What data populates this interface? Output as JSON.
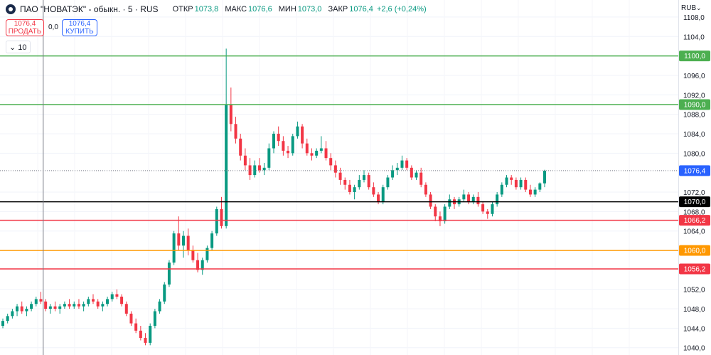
{
  "header": {
    "symbol": "ПАО \"НОВАТЭК\" - обыкн. · 5 · RUS",
    "ohlc": [
      {
        "k": "ОТКР",
        "v": "1073,8"
      },
      {
        "k": "МАКС",
        "v": "1076,6"
      },
      {
        "k": "МИН",
        "v": "1073,0"
      },
      {
        "k": "ЗАКР",
        "v": "1076,4"
      },
      {
        "k": "",
        "v": "+2,6 (+0,24%)"
      }
    ],
    "sell_price": "1076,4",
    "sell_label": "ПРОДАТЬ",
    "spread": "0,0",
    "buy_price": "1076,4",
    "buy_label": "КУПИТЬ",
    "interval_control": "⌄ 10",
    "currency": "RUB",
    "currency_chevron": "⌄"
  },
  "colors": {
    "up": "#089981",
    "down": "#f23645",
    "line_green": "#4caf50",
    "line_red": "#f23645",
    "line_orange": "#ff9800",
    "line_black": "#000000",
    "price_line_blue": "#2962ff"
  },
  "chart_data": {
    "type": "candlestick",
    "ylim": [
      1038.5,
      1111.5
    ],
    "y_ticks": [
      {
        "v": 1040,
        "label": "1040,0"
      },
      {
        "v": 1044,
        "label": "1044,0"
      },
      {
        "v": 1048,
        "label": "1048,0"
      },
      {
        "v": 1052,
        "label": "1052,0"
      },
      {
        "v": 1064,
        "label": "1064,0"
      },
      {
        "v": 1068,
        "label": "1068,0"
      },
      {
        "v": 1072,
        "label": "1072,0"
      },
      {
        "v": 1080,
        "label": "1080,0"
      },
      {
        "v": 1084,
        "label": "1084,0"
      },
      {
        "v": 1088,
        "label": "1088,0"
      },
      {
        "v": 1092,
        "label": "1092,0"
      },
      {
        "v": 1096,
        "label": "1096,0"
      },
      {
        "v": 1104,
        "label": "1104,0"
      },
      {
        "v": 1108,
        "label": "1108,0"
      }
    ],
    "horizontal_lines": [
      {
        "price": 1100.0,
        "label": "1100,0",
        "color": "#4caf50",
        "style": "solid"
      },
      {
        "price": 1090.0,
        "label": "1090,0",
        "color": "#4caf50",
        "style": "solid"
      },
      {
        "price": 1076.4,
        "label": "1076,4",
        "color": "#2962ff",
        "style": "dotted"
      },
      {
        "price": 1070.0,
        "label": "1070,0",
        "color": "#000000",
        "style": "solid"
      },
      {
        "price": 1066.2,
        "label": "1066,2",
        "color": "#f23645",
        "style": "solid"
      },
      {
        "price": 1060.0,
        "label": "1060,0",
        "color": "#ff9800",
        "style": "solid"
      },
      {
        "price": 1056.2,
        "label": "1056,2",
        "color": "#f23645",
        "style": "solid"
      }
    ],
    "candles": [
      [
        1044.5,
        1046.0,
        1044.0,
        1045.5
      ],
      [
        1045.5,
        1047.0,
        1045.0,
        1046.5
      ],
      [
        1046.5,
        1048.0,
        1046.0,
        1047.5
      ],
      [
        1047.5,
        1049.0,
        1046.5,
        1048.5
      ],
      [
        1048.5,
        1049.5,
        1047.0,
        1047.5
      ],
      [
        1047.5,
        1048.5,
        1046.5,
        1048.0
      ],
      [
        1048.0,
        1049.5,
        1047.5,
        1049.0
      ],
      [
        1049.0,
        1050.5,
        1048.5,
        1050.0
      ],
      [
        1050.0,
        1051.5,
        1049.0,
        1049.5
      ],
      [
        1049.5,
        1050.0,
        1047.5,
        1048.0
      ],
      [
        1048.0,
        1049.0,
        1047.0,
        1048.5
      ],
      [
        1048.5,
        1049.5,
        1047.5,
        1048.0
      ],
      [
        1048.0,
        1049.0,
        1047.0,
        1048.5
      ],
      [
        1048.5,
        1049.5,
        1048.0,
        1049.0
      ],
      [
        1049.0,
        1050.0,
        1048.0,
        1048.5
      ],
      [
        1048.5,
        1049.5,
        1048.0,
        1049.0
      ],
      [
        1049.0,
        1050.0,
        1048.0,
        1048.5
      ],
      [
        1048.5,
        1049.5,
        1047.5,
        1049.0
      ],
      [
        1049.0,
        1050.5,
        1048.5,
        1050.0
      ],
      [
        1050.0,
        1051.0,
        1049.0,
        1049.5
      ],
      [
        1049.5,
        1050.0,
        1048.0,
        1048.5
      ],
      [
        1048.5,
        1049.5,
        1047.5,
        1049.0
      ],
      [
        1049.0,
        1050.5,
        1048.5,
        1050.0
      ],
      [
        1050.0,
        1051.5,
        1049.5,
        1051.0
      ],
      [
        1051.0,
        1052.0,
        1050.0,
        1050.5
      ],
      [
        1050.5,
        1051.0,
        1048.5,
        1049.0
      ],
      [
        1049.0,
        1049.5,
        1046.5,
        1047.0
      ],
      [
        1047.0,
        1047.5,
        1044.5,
        1045.0
      ],
      [
        1045.0,
        1046.0,
        1043.0,
        1043.5
      ],
      [
        1043.5,
        1044.5,
        1041.5,
        1042.0
      ],
      [
        1042.0,
        1043.0,
        1040.5,
        1041.0
      ],
      [
        1041.0,
        1045.0,
        1040.5,
        1044.5
      ],
      [
        1044.5,
        1048.0,
        1044.0,
        1047.5
      ],
      [
        1047.5,
        1050.0,
        1047.0,
        1049.5
      ],
      [
        1049.5,
        1053.5,
        1049.0,
        1053.0
      ],
      [
        1053.0,
        1058.0,
        1052.5,
        1057.5
      ],
      [
        1057.5,
        1064.0,
        1057.0,
        1063.5
      ],
      [
        1063.5,
        1067.0,
        1060.0,
        1061.0
      ],
      [
        1061.0,
        1064.0,
        1058.5,
        1063.0
      ],
      [
        1063.0,
        1064.5,
        1059.0,
        1060.0
      ],
      [
        1060.0,
        1061.0,
        1057.5,
        1058.0
      ],
      [
        1058.0,
        1059.5,
        1055.5,
        1056.0
      ],
      [
        1056.0,
        1058.5,
        1055.0,
        1058.0
      ],
      [
        1058.0,
        1061.0,
        1057.5,
        1060.5
      ],
      [
        1060.5,
        1064.0,
        1060.0,
        1063.5
      ],
      [
        1063.5,
        1069.0,
        1063.0,
        1068.5
      ],
      [
        1068.5,
        1071.0,
        1064.5,
        1065.0
      ],
      [
        1065.0,
        1101.5,
        1064.5,
        1090.0
      ],
      [
        1090.0,
        1093.5,
        1084.5,
        1086.0
      ],
      [
        1086.0,
        1087.5,
        1082.0,
        1083.0
      ],
      [
        1083.0,
        1084.0,
        1078.5,
        1079.5
      ],
      [
        1079.5,
        1081.0,
        1076.5,
        1077.5
      ],
      [
        1077.5,
        1079.0,
        1074.5,
        1075.5
      ],
      [
        1075.5,
        1078.5,
        1075.0,
        1077.5
      ],
      [
        1077.5,
        1079.0,
        1076.0,
        1076.5
      ],
      [
        1076.5,
        1078.0,
        1075.5,
        1077.0
      ],
      [
        1077.0,
        1082.0,
        1076.5,
        1081.0
      ],
      [
        1081.0,
        1084.5,
        1080.0,
        1084.0
      ],
      [
        1084.0,
        1085.5,
        1081.5,
        1082.5
      ],
      [
        1082.5,
        1083.5,
        1079.5,
        1080.5
      ],
      [
        1080.5,
        1081.5,
        1079.0,
        1080.0
      ],
      [
        1080.0,
        1084.0,
        1079.5,
        1083.5
      ],
      [
        1083.5,
        1086.5,
        1083.0,
        1085.5
      ],
      [
        1085.5,
        1086.0,
        1081.0,
        1082.0
      ],
      [
        1082.0,
        1083.0,
        1079.5,
        1080.0
      ],
      [
        1080.0,
        1081.0,
        1078.5,
        1079.5
      ],
      [
        1079.5,
        1081.0,
        1079.0,
        1080.5
      ],
      [
        1080.5,
        1083.5,
        1080.0,
        1081.0
      ],
      [
        1081.0,
        1082.5,
        1078.5,
        1079.0
      ],
      [
        1079.0,
        1080.0,
        1076.5,
        1077.5
      ],
      [
        1077.5,
        1078.5,
        1075.0,
        1076.0
      ],
      [
        1076.0,
        1077.0,
        1073.5,
        1074.5
      ],
      [
        1074.5,
        1075.0,
        1072.5,
        1073.5
      ],
      [
        1073.5,
        1074.5,
        1071.5,
        1072.0
      ],
      [
        1072.0,
        1073.5,
        1070.5,
        1073.0
      ],
      [
        1073.0,
        1075.5,
        1072.5,
        1074.5
      ],
      [
        1074.5,
        1076.5,
        1074.0,
        1075.5
      ],
      [
        1075.5,
        1076.0,
        1072.5,
        1073.0
      ],
      [
        1073.0,
        1074.0,
        1071.0,
        1071.5
      ],
      [
        1071.5,
        1072.0,
        1069.5,
        1070.0
      ],
      [
        1070.0,
        1073.5,
        1069.5,
        1073.0
      ],
      [
        1073.0,
        1075.5,
        1072.5,
        1075.0
      ],
      [
        1075.0,
        1077.5,
        1074.5,
        1076.5
      ],
      [
        1076.5,
        1078.0,
        1075.5,
        1077.0
      ],
      [
        1077.0,
        1079.5,
        1076.5,
        1078.5
      ],
      [
        1078.5,
        1079.0,
        1076.5,
        1077.0
      ],
      [
        1077.0,
        1077.5,
        1074.5,
        1075.0
      ],
      [
        1075.0,
        1076.5,
        1074.5,
        1076.0
      ],
      [
        1076.0,
        1077.0,
        1073.0,
        1073.5
      ],
      [
        1073.5,
        1074.0,
        1071.0,
        1071.5
      ],
      [
        1071.5,
        1072.0,
        1068.5,
        1069.0
      ],
      [
        1069.0,
        1069.5,
        1066.0,
        1067.0
      ],
      [
        1067.0,
        1068.0,
        1065.0,
        1066.0
      ],
      [
        1066.0,
        1069.5,
        1065.5,
        1069.0
      ],
      [
        1069.0,
        1071.5,
        1068.5,
        1070.5
      ],
      [
        1070.5,
        1071.0,
        1068.5,
        1069.5
      ],
      [
        1069.5,
        1071.0,
        1069.0,
        1070.5
      ],
      [
        1070.5,
        1072.5,
        1070.0,
        1071.5
      ],
      [
        1071.5,
        1072.0,
        1069.5,
        1070.0
      ],
      [
        1070.0,
        1071.5,
        1069.5,
        1071.0
      ],
      [
        1071.0,
        1072.0,
        1069.0,
        1069.5
      ],
      [
        1069.5,
        1070.0,
        1067.5,
        1068.0
      ],
      [
        1068.0,
        1068.5,
        1066.5,
        1067.5
      ],
      [
        1067.5,
        1070.0,
        1067.0,
        1069.5
      ],
      [
        1069.5,
        1072.0,
        1069.0,
        1071.5
      ],
      [
        1071.5,
        1074.0,
        1071.0,
        1073.5
      ],
      [
        1073.5,
        1075.5,
        1073.0,
        1075.0
      ],
      [
        1075.0,
        1075.5,
        1073.5,
        1074.5
      ],
      [
        1074.5,
        1075.0,
        1072.5,
        1073.0
      ],
      [
        1073.0,
        1075.0,
        1072.5,
        1074.5
      ],
      [
        1074.5,
        1075.0,
        1072.0,
        1072.5
      ],
      [
        1072.5,
        1073.5,
        1071.0,
        1071.5
      ],
      [
        1071.5,
        1073.0,
        1071.0,
        1072.5
      ],
      [
        1072.5,
        1074.0,
        1072.0,
        1073.8
      ],
      [
        1073.8,
        1076.6,
        1073.0,
        1076.4
      ]
    ],
    "current_price": 1076.4,
    "vertical_crosshair_index": 7
  }
}
